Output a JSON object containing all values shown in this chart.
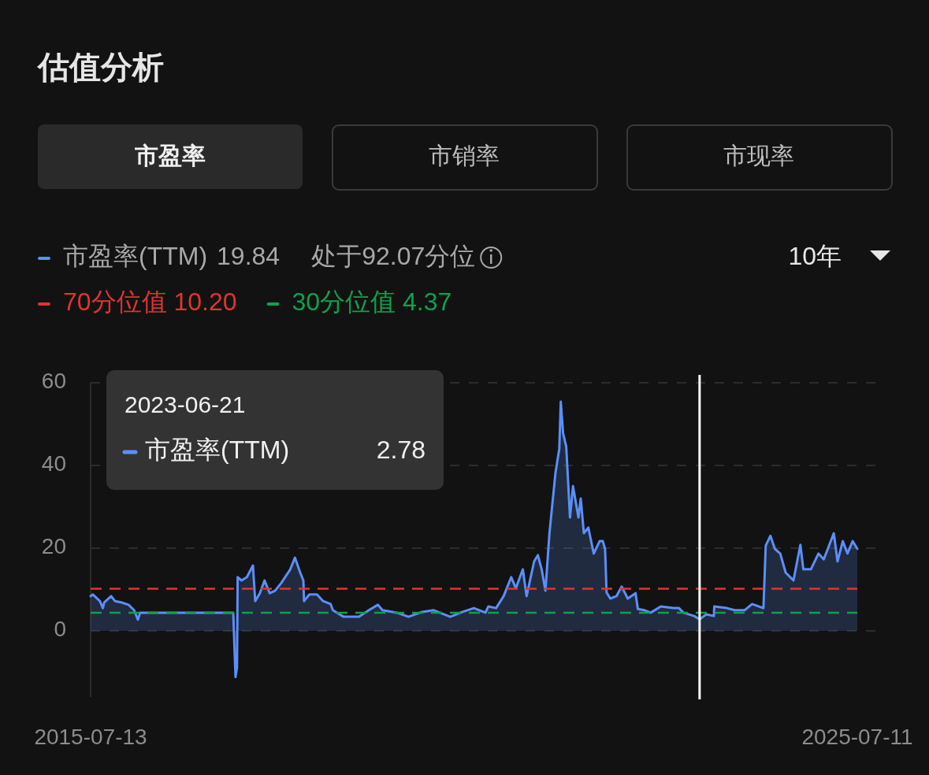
{
  "chart_data": {
    "type": "area",
    "title": "估值分析",
    "annotations": [
      "市盈率",
      "市销率",
      "市现率",
      "处于92.07分位",
      "10年",
      "19.84",
      "2023-06-21",
      "2.78"
    ],
    "x": [
      "2015-07-13",
      "2015-07-24",
      "2015-08-26",
      "2015-09-09",
      "2015-09-16",
      "2015-10-19",
      "2015-11-06",
      "2015-12-05",
      "2016-01-10",
      "2016-02-05",
      "2016-02-23",
      "2016-03-05",
      "2017-05-14",
      "2017-05-22",
      "2017-06-02",
      "2017-06-09",
      "2017-06-12",
      "2017-07-01",
      "2017-07-26",
      "2017-08-24",
      "2017-09-04",
      "2017-09-26",
      "2017-10-18",
      "2017-11-12",
      "2017-12-07",
      "2018-01-06",
      "2018-02-18",
      "2018-03-12",
      "2018-04-06",
      "2018-04-21",
      "2018-04-24",
      "2018-05-20",
      "2018-06-25",
      "2018-07-24",
      "2018-08-29",
      "2018-09-09",
      "2018-10-30",
      "2018-11-21",
      "2019-01-11",
      "2019-02-27",
      "2019-04-11",
      "2019-05-03",
      "2019-07-11",
      "2019-09-04",
      "2019-11-08",
      "2020-01-02",
      "2020-03-21",
      "2020-05-18",
      "2020-07-11",
      "2020-09-04",
      "2020-09-18",
      "2020-10-25",
      "2020-11-30",
      "2021-01-05",
      "2021-01-27",
      "2021-03-01",
      "2021-03-19",
      "2021-04-24",
      "2021-05-12",
      "2021-05-30",
      "2021-06-17",
      "2021-07-06",
      "2021-08-04",
      "2021-08-22",
      "2021-08-29",
      "2021-09-09",
      "2021-09-24",
      "2021-10-12",
      "2021-10-26",
      "2021-11-21",
      "2021-12-02",
      "2021-12-17",
      "2022-01-07",
      "2022-02-02",
      "2022-03-02",
      "2022-03-17",
      "2022-03-28",
      "2022-04-04",
      "2022-04-22",
      "2022-05-21",
      "2022-06-15",
      "2022-07-14",
      "2022-08-20",
      "2022-08-31",
      "2022-10-02",
      "2022-10-31",
      "2022-12-18",
      "2023-02-17",
      "2023-03-15",
      "2023-04-05",
      "2023-05-26",
      "2023-06-21",
      "2023-07-23",
      "2023-08-28",
      "2023-08-30",
      "2023-10-29",
      "2023-12-05",
      "2024-01-21",
      "2024-02-26",
      "2024-04-20",
      "2024-05-01",
      "2024-05-23",
      "2024-06-14",
      "2024-07-09",
      "2024-08-04",
      "2024-09-10",
      "2024-10-13",
      "2024-10-27",
      "2024-12-02",
      "2025-01-07",
      "2025-02-01",
      "2025-03-21",
      "2025-04-08",
      "2025-05-03",
      "2025-05-25",
      "2025-06-19",
      "2025-07-11"
    ],
    "series": [
      {
        "name": "市盈率(TTM)",
        "color": "#5b8ff9",
        "values": [
          8.4,
          8.8,
          7.2,
          5.5,
          6.9,
          8.4,
          7.2,
          6.9,
          6.3,
          5.0,
          2.7,
          4.4,
          4.4,
          4.4,
          -11.2,
          -8.8,
          13,
          12.2,
          13,
          15.8,
          7.2,
          9.1,
          12.2,
          9.1,
          9.7,
          11.6,
          14.9,
          17.7,
          14.1,
          12.2,
          7.2,
          8.8,
          8.8,
          7.2,
          6.5,
          5.0,
          3.4,
          3.4,
          3.4,
          5.0,
          6.3,
          5.0,
          4.4,
          3.4,
          4.6,
          5.0,
          3.4,
          4.6,
          5.5,
          4.4,
          5.9,
          5.5,
          8.4,
          13,
          10.3,
          14.9,
          8.4,
          16.8,
          18.3,
          14.9,
          9.7,
          23.6,
          38.3,
          44,
          55.4,
          47.8,
          44.6,
          27.4,
          35,
          27.4,
          32,
          23.6,
          25,
          18.7,
          21.7,
          21.7,
          19.8,
          9.3,
          7.8,
          8.4,
          10.7,
          7.8,
          9.1,
          5.3,
          5.0,
          4.4,
          5.9,
          5.5,
          5.5,
          4.4,
          3.6,
          2.78,
          4.0,
          3.6,
          5.9,
          5.5,
          5.0,
          5.0,
          6.5,
          5.5,
          20.6,
          23,
          19.8,
          18.7,
          14.1,
          12.2,
          20.8,
          14.9,
          14.9,
          18.7,
          17.3,
          23.6,
          16.8,
          21.7,
          18.7,
          21.7,
          19.84
        ]
      }
    ],
    "ref_lines": [
      {
        "axis": "y",
        "value": 10.2,
        "label": "70分位值 10.20",
        "color": "#e0342f",
        "line_style": "dashed"
      },
      {
        "axis": "y",
        "value": 4.37,
        "label": "30分位值 4.37",
        "color": "#0fa14a",
        "line_style": "dashed"
      },
      {
        "axis": "x",
        "value": "2023-06-21",
        "label": null,
        "color": "#ffffff",
        "line_style": "solid"
      }
    ],
    "xlim": [
      "2015-07-13",
      "2025-07-11"
    ],
    "xticks": [
      "2015-07-13",
      "2025-07-11"
    ],
    "ylim": [
      -16,
      60
    ],
    "yticks": [
      0,
      20,
      40,
      60
    ],
    "grid": "y",
    "legend": "top left",
    "marker": "none"
  }
}
